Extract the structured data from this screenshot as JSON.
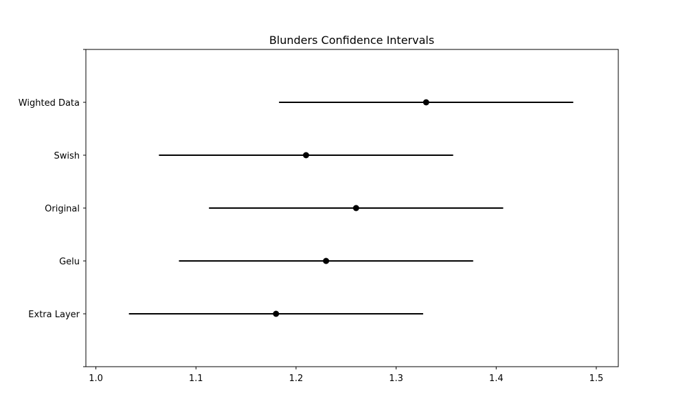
{
  "chart_data": {
    "type": "scatter",
    "subtype": "confidence-interval",
    "title": "Blunders Confidence Intervals",
    "xlabel": "",
    "ylabel": "",
    "xlim": [
      0.99,
      1.522
    ],
    "x_ticks": [
      1.0,
      1.1,
      1.2,
      1.3,
      1.4,
      1.5
    ],
    "x_tick_labels": [
      "1.0",
      "1.1",
      "1.2",
      "1.3",
      "1.4",
      "1.5"
    ],
    "grid": false,
    "legend": "none",
    "colors": {
      "marker": "#000000",
      "interval": "#000000",
      "axes": "#000000"
    },
    "categories": [
      "Extra Layer",
      "Gelu",
      "Original",
      "Swish",
      "Wighted Data"
    ],
    "series": [
      {
        "estimates": [
          1.18,
          1.23,
          1.26,
          1.21,
          1.33
        ],
        "lower": [
          1.033,
          1.083,
          1.113,
          1.063,
          1.183
        ],
        "upper": [
          1.327,
          1.377,
          1.407,
          1.357,
          1.477
        ]
      }
    ]
  }
}
